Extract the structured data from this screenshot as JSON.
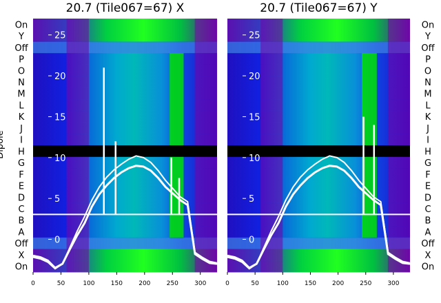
{
  "chart_data": [
    {
      "type": "heatmap",
      "title": "20.7 (Tile067=67) X",
      "ylabel": "Dipole",
      "x_ticks": [
        "0",
        "50",
        "100",
        "150",
        "200",
        "250",
        "300"
      ],
      "xlim": [
        0,
        330
      ],
      "row_labels": [
        "On",
        "Y",
        "Off",
        "P",
        "O",
        "N",
        "M",
        "L",
        "K",
        "J",
        "I",
        "H",
        "G",
        "F",
        "E",
        "D",
        "C",
        "B",
        "A",
        "Off",
        "X",
        "On"
      ],
      "overlay_y_ticks": [
        "25",
        "20",
        "15",
        "10",
        "5",
        "0"
      ],
      "overlay_ylim": [
        -4,
        27
      ],
      "overlay_lines_y": [
        [
          -2,
          -2.2,
          -2.6,
          -3.5,
          -3.0,
          -1.2,
          0.5,
          2.0,
          4.0,
          5.5,
          6.6,
          7.5,
          8.2,
          8.7,
          9.0,
          8.9,
          8.4,
          7.5,
          6.4,
          5.6,
          4.8,
          4.2,
          -1.8,
          -2.4,
          -2.9,
          -3.0
        ],
        [
          -2.2,
          -2.4,
          -2.8,
          -3.6,
          -3.0,
          -1.0,
          1.0,
          2.8,
          4.8,
          6.4,
          7.6,
          8.5,
          9.2,
          9.8,
          10.2,
          10.0,
          9.4,
          8.4,
          7.2,
          6.2,
          5.2,
          4.6,
          -1.6,
          -2.2,
          -2.7,
          -2.9
        ]
      ],
      "spike_x": [
        127,
        148,
        248,
        262
      ],
      "spike_y": [
        21,
        12,
        10,
        7.5
      ],
      "green_band_x": [
        245,
        270
      ],
      "black_band_rows": [
        "H"
      ],
      "white_line_between": [
        "C",
        "B"
      ]
    },
    {
      "type": "heatmap",
      "title": "20.7 (Tile067=67) Y",
      "x_ticks": [
        "0",
        "50",
        "100",
        "150",
        "200",
        "250",
        "300"
      ],
      "xlim": [
        0,
        330
      ],
      "row_labels": [
        "On",
        "Y",
        "Off",
        "P",
        "O",
        "N",
        "M",
        "L",
        "K",
        "J",
        "I",
        "H",
        "G",
        "F",
        "E",
        "D",
        "C",
        "B",
        "A",
        "Off",
        "X",
        "On"
      ],
      "overlay_y_ticks": [
        "25",
        "20",
        "15",
        "10",
        "5",
        "0"
      ],
      "overlay_ylim": [
        -4,
        27
      ],
      "overlay_lines_y": [
        [
          -2,
          -2.2,
          -2.6,
          -3.5,
          -3.0,
          -1.2,
          0.5,
          2.0,
          4.0,
          5.5,
          6.6,
          7.5,
          8.2,
          8.7,
          9.0,
          8.9,
          8.4,
          7.5,
          6.4,
          5.6,
          4.8,
          4.2,
          -1.8,
          -2.4,
          -2.9,
          -3.0
        ],
        [
          -2.2,
          -2.4,
          -2.8,
          -3.6,
          -3.0,
          -1.0,
          1.0,
          2.8,
          4.8,
          6.4,
          7.6,
          8.5,
          9.2,
          9.8,
          10.2,
          10.0,
          9.4,
          8.4,
          7.2,
          6.2,
          5.2,
          4.6,
          -1.6,
          -2.2,
          -2.7,
          -2.9
        ]
      ],
      "spike_x": [
        246,
        265
      ],
      "spike_y": [
        15,
        14
      ],
      "green_band_x": [
        243,
        270
      ],
      "black_band_rows": [
        "H"
      ],
      "white_line_between": [
        "C",
        "B"
      ]
    }
  ],
  "colors": {
    "magenta": "#7a00a8",
    "blue": "#1010d0",
    "cyan": "#00a8d8",
    "green": "#00e000",
    "black": "#000000",
    "white": "#ffffff"
  }
}
